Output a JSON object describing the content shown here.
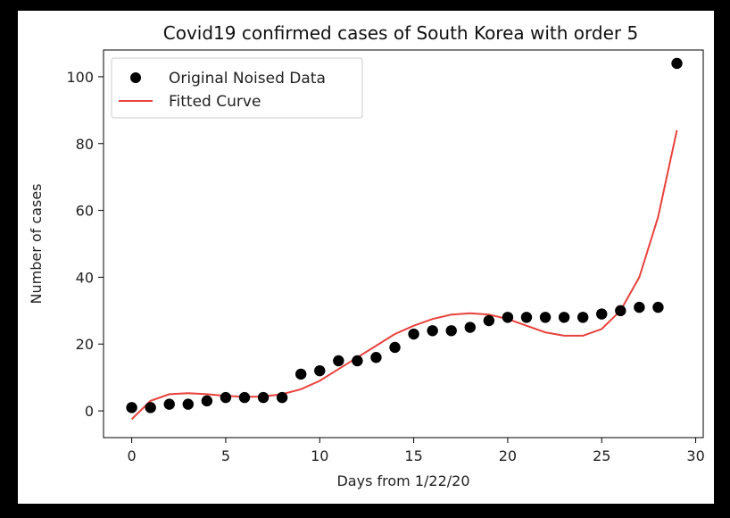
{
  "chart_data": {
    "type": "scatter",
    "title": "Covid19 confirmed cases of South Korea with order 5",
    "xlabel": "Days from 1/22/20",
    "ylabel": "Number of cases",
    "xlim": [
      -1.5,
      30.4
    ],
    "ylim": [
      -8,
      108
    ],
    "xticks": [
      0,
      5,
      10,
      15,
      20,
      25,
      30
    ],
    "yticks": [
      0,
      20,
      40,
      60,
      80,
      100
    ],
    "grid": false,
    "legend_position": "top-left",
    "series": [
      {
        "name": "Original Noised Data",
        "kind": "scatter",
        "color": "#000000",
        "x": [
          0,
          1,
          2,
          3,
          4,
          5,
          6,
          7,
          8,
          9,
          10,
          11,
          12,
          13,
          14,
          15,
          16,
          17,
          18,
          19,
          20,
          21,
          22,
          23,
          24,
          25,
          26,
          27,
          28,
          29
        ],
        "y": [
          1,
          1,
          2,
          2,
          3,
          4,
          4,
          4,
          4,
          11,
          12,
          15,
          15,
          16,
          19,
          23,
          24,
          24,
          25,
          27,
          28,
          28,
          28,
          28,
          28,
          29,
          30,
          31,
          31,
          104
        ]
      },
      {
        "name": "Fitted Curve",
        "kind": "line",
        "color": "#e8413c",
        "x": [
          0,
          1,
          2,
          3,
          4,
          5,
          6,
          7,
          8,
          9,
          10,
          11,
          12,
          13,
          14,
          15,
          16,
          17,
          18,
          19,
          20,
          21,
          22,
          23,
          24,
          25,
          26,
          27,
          28,
          29
        ],
        "y": [
          -2.5,
          3,
          5,
          5.3,
          5,
          4.5,
          4.2,
          4.3,
          5,
          6.5,
          9,
          12.5,
          16,
          19.5,
          23,
          25.5,
          27.5,
          28.8,
          29.2,
          28.8,
          27.5,
          25.5,
          23.5,
          22.5,
          22.5,
          24.5,
          30,
          40,
          58,
          84
        ]
      }
    ]
  }
}
